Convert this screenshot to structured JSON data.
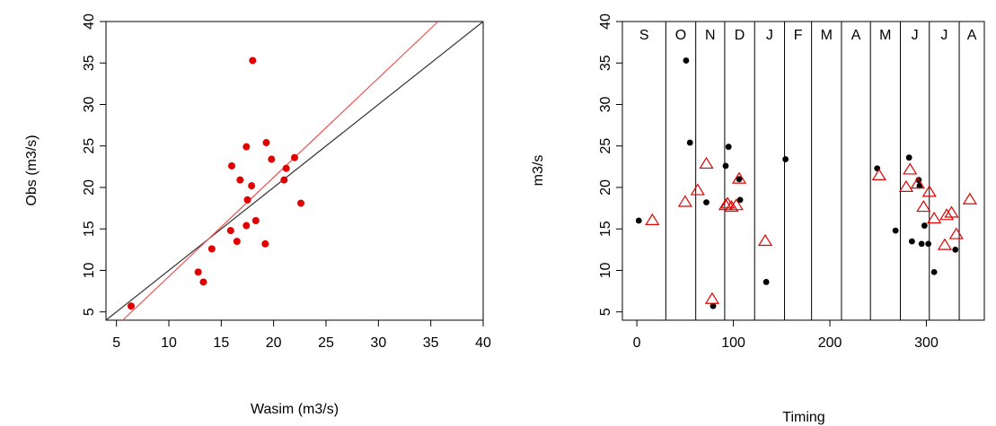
{
  "chart_data": [
    {
      "type": "scatter",
      "xlabel": "Wasim (m3/s)",
      "ylabel": "Obs (m3/s)",
      "xlim": [
        4,
        40
      ],
      "ylim": [
        4,
        40
      ],
      "xticks": [
        5,
        10,
        15,
        20,
        25,
        30,
        35,
        40
      ],
      "yticks": [
        5,
        10,
        15,
        20,
        25,
        30,
        35,
        40
      ],
      "grid": false,
      "colors": {
        "points": "#e00000",
        "fit_line": "#f05050",
        "one_to_one": "#333333"
      },
      "series": [
        {
          "x": [
            6.4,
            12.8,
            13.3,
            14.1,
            15.9,
            16.0,
            16.5,
            16.8,
            17.4,
            17.4,
            17.5,
            17.9,
            18.0,
            18.3,
            19.2,
            19.3,
            19.8,
            21.0,
            21.2,
            22.0,
            22.6
          ],
          "y": [
            5.7,
            9.8,
            8.6,
            12.6,
            14.8,
            22.6,
            13.5,
            20.9,
            15.4,
            24.9,
            18.5,
            20.2,
            35.3,
            16.0,
            13.2,
            25.4,
            23.4,
            20.9,
            22.3,
            23.6,
            18.1
          ]
        }
      ],
      "lines": [
        {
          "x": [
            4,
            40
          ],
          "y": [
            4,
            40
          ]
        },
        {
          "x": [
            5.6,
            35.7
          ],
          "y": [
            4,
            40
          ]
        }
      ]
    },
    {
      "type": "scatter",
      "xlabel": "Timing",
      "ylabel": "m3/s",
      "xlim": [
        -15,
        360
      ],
      "ylim": [
        4,
        40
      ],
      "xticks": [
        0,
        100,
        200,
        300
      ],
      "yticks": [
        5,
        10,
        15,
        20,
        25,
        30,
        35,
        40
      ],
      "grid": false,
      "month_boundaries": [
        30,
        61,
        91,
        122,
        153,
        181,
        212,
        242,
        273,
        303,
        334
      ],
      "month_labels": [
        "S",
        "O",
        "N",
        "D",
        "J",
        "F",
        "M",
        "A",
        "M",
        "J",
        "J",
        "A"
      ],
      "colors": {
        "filled": "#000000",
        "triangles": "#e00000"
      },
      "series": [
        {
          "marker": "filled-circle",
          "x": [
            2,
            51,
            55,
            72,
            79,
            92,
            95,
            106,
            107,
            134,
            154,
            249,
            268,
            282,
            285,
            292,
            293,
            295,
            298,
            302,
            308,
            330
          ],
          "y": [
            16.0,
            35.3,
            25.4,
            18.2,
            5.7,
            22.6,
            24.9,
            21.0,
            18.5,
            8.6,
            23.4,
            22.3,
            14.8,
            23.6,
            13.5,
            20.9,
            20.2,
            13.2,
            15.4,
            13.2,
            9.8,
            12.5
          ]
        },
        {
          "marker": "open-triangle",
          "x": [
            16,
            50,
            63,
            72,
            78,
            92,
            94,
            98,
            103,
            106,
            133,
            251,
            279,
            283,
            291,
            297,
            303,
            308,
            319,
            321,
            326,
            331,
            345
          ],
          "y": [
            16.0,
            18.2,
            19.6,
            22.8,
            6.5,
            17.8,
            18.0,
            17.6,
            17.8,
            21.0,
            13.5,
            21.4,
            20.0,
            22.1,
            20.4,
            17.6,
            19.4,
            16.2,
            13.0,
            16.6,
            16.9,
            14.3,
            18.5
          ]
        }
      ]
    }
  ]
}
